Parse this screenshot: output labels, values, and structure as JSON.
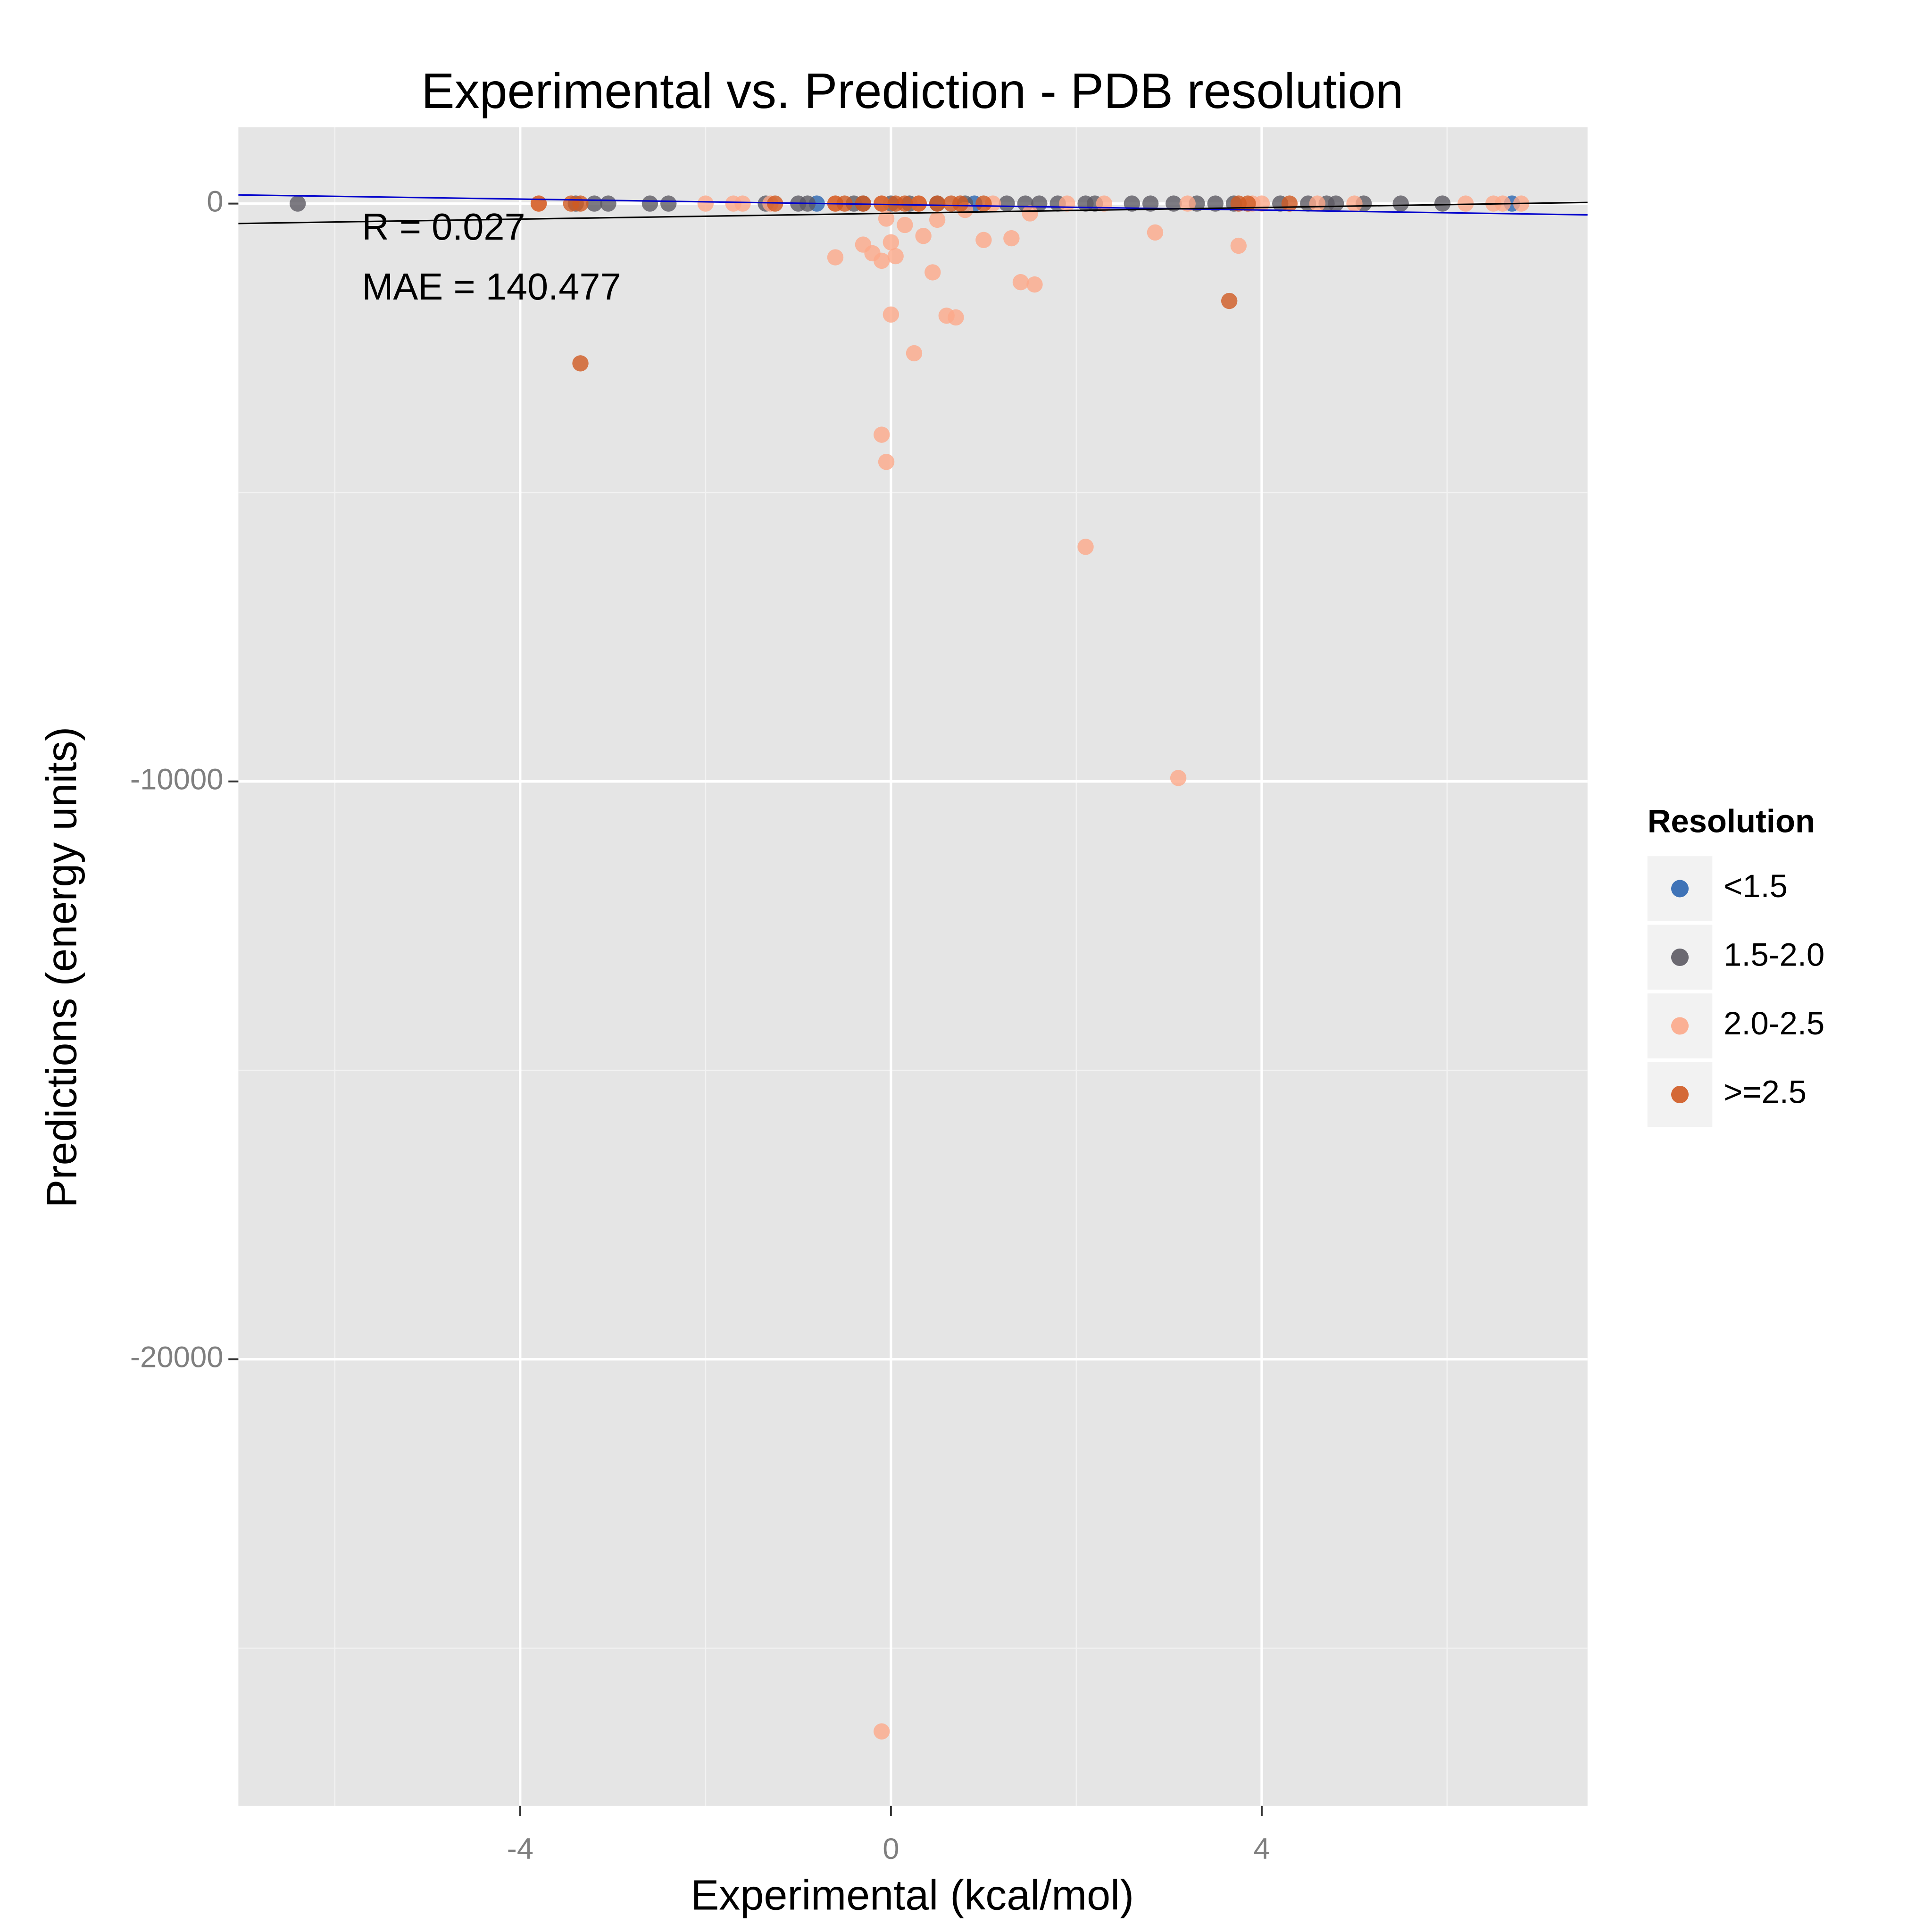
{
  "chart_data": {
    "type": "scatter",
    "title": "Experimental vs. Prediction - PDB resolution",
    "x_label": "Experimental (kcal/mol)",
    "y_label": "Predictions (energy units)",
    "legend_title": "Resolution",
    "legend_position": "right",
    "annotations": [
      "R = 0.027",
      "MAE = 140.477"
    ],
    "xlim": [
      -7.04,
      7.515
    ],
    "ylim": [
      -27730,
      1320
    ],
    "xticks": [
      -4,
      0,
      4
    ],
    "yticks": [
      0,
      -10000,
      -20000
    ],
    "x_minor_grid": [
      -6,
      -2,
      2,
      6
    ],
    "y_minor_grid": [
      -5000,
      -15000,
      -25000
    ],
    "grid": true,
    "series": [
      {
        "name": "<1.5",
        "color": "#2b65b0",
        "x": [
          -0.8,
          0.9,
          6.7
        ],
        "values": [
          0,
          0,
          0
        ]
      },
      {
        "name": "1.5-2.0",
        "color": "#5c5a63",
        "x": [
          -6.4,
          -3.4,
          -3.2,
          -3.05,
          -2.6,
          -2.4,
          -1.35,
          -1.0,
          -0.9,
          -0.4,
          -0.3,
          0,
          0.2,
          0.5,
          0.8,
          1.25,
          1.45,
          1.6,
          1.8,
          2.1,
          2.2,
          2.6,
          2.8,
          3.05,
          3.3,
          3.5,
          3.7,
          4.2,
          4.5,
          4.7,
          4.8,
          5.1,
          5.5,
          5.95
        ],
        "values": [
          0,
          0,
          0,
          0,
          0,
          0,
          0,
          0,
          0,
          0,
          0,
          0,
          0,
          0,
          0,
          0,
          0,
          0,
          0,
          0,
          0,
          0,
          0,
          0,
          0,
          0,
          0,
          0,
          0,
          0,
          0,
          0,
          0,
          0
        ]
      },
      {
        "name": "2.0-2.5",
        "color": "#fca98a",
        "x": [
          -3.8,
          -2,
          -1.7,
          -1.6,
          -1.3,
          -0.6,
          -0.1,
          0.3,
          1.1,
          1.9,
          2.3,
          3.2,
          3.9,
          4.0,
          4.6,
          5.0,
          6.2,
          6.5,
          6.6,
          6.8,
          -0.6,
          -0.3,
          -0.2,
          -0.1,
          0,
          0.05,
          -0.05,
          0.15,
          0.35,
          0.45,
          0.5,
          0.8,
          1,
          1.3,
          1.4,
          1.5,
          1.55,
          0,
          0.25,
          0.6,
          0.7,
          -0.1,
          -0.05,
          2.1,
          2.85,
          3.75,
          3.1,
          -0.1
        ],
        "values": [
          0,
          0,
          0,
          0,
          0,
          0,
          0,
          0,
          0,
          0,
          0,
          0,
          0,
          0,
          0,
          0,
          0,
          0,
          0,
          0,
          -930,
          -710,
          -860,
          -990,
          -670,
          -910,
          -260,
          -370,
          -560,
          -1190,
          -280,
          -110,
          -630,
          -600,
          -1360,
          -170,
          -1400,
          -1920,
          -2590,
          -1940,
          -1970,
          -4000,
          -4470,
          -5940,
          -500,
          -730,
          -9940,
          -26440
        ]
      },
      {
        "name": ">=2.5",
        "color": "#d05a22",
        "x": [
          -3.8,
          -3.45,
          -3.35,
          -1.25,
          -0.6,
          -0.5,
          -0.3,
          -0.1,
          0.05,
          0.15,
          0.3,
          0.5,
          0.65,
          0.75,
          1.0,
          3.75,
          3.85,
          4.3,
          -3.35,
          3.65
        ],
        "values": [
          0,
          0,
          0,
          0,
          0,
          0,
          0,
          0,
          0,
          0,
          0,
          0,
          0,
          0,
          0,
          0,
          0,
          0,
          -2765,
          -1685
        ]
      }
    ],
    "lines": [
      {
        "color": "#0000cc",
        "x": [
          -7.04,
          7.515
        ],
        "values": [
          150,
          -195
        ]
      },
      {
        "color": "#000000",
        "x": [
          -7.04,
          7.515
        ],
        "values": [
          -345,
          20
        ]
      }
    ]
  }
}
